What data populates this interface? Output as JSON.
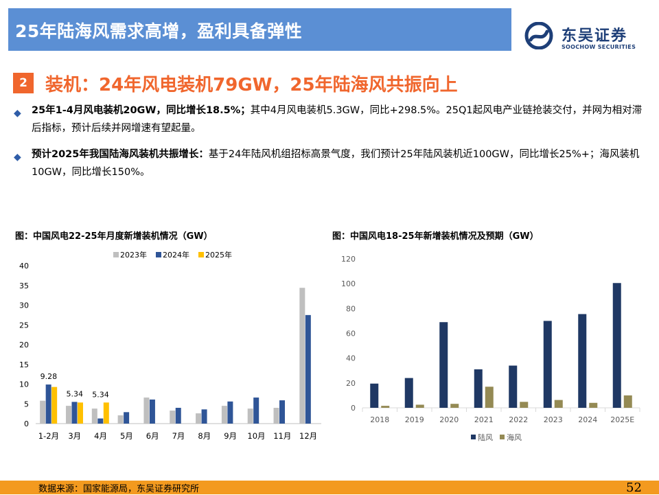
{
  "header": {
    "title": "25年陆海风需求高增，盈利具备弹性"
  },
  "logo": {
    "name_cn": "东吴证券",
    "name_en": "SOOCHOW SECURITIES"
  },
  "section": {
    "number": "2",
    "title": "装机：24年风电装机79GW，25年陆海风共振向上"
  },
  "bullets": [
    {
      "bold": "25年1-4月风电装机20GW，同比增长18.5%；",
      "text": "其中4月风电装机5.3GW，同比+298.5%。25Q1起风电产业链抢装交付，并网为相对滞后指标，预计后续并网增速有望起量。"
    },
    {
      "bold": "预计2025年我国陆海风装机共振增长：",
      "text": "基于24年陆风机组招标高景气度，我们预计25年陆风装机近100GW，同比增长25%+；海风装机10GW，同比增长150%。"
    }
  ],
  "colors": {
    "c2023": "#bfbfbf",
    "c2024": "#2f5597",
    "c2025": "#ffc000",
    "onshore": "#1f3864",
    "offshore": "#948a54",
    "accent": "#f0662d",
    "title_bar": "#5b8fd4"
  },
  "chart_data": [
    {
      "type": "bar",
      "title": "图：中国风电22-25年月度新增装机情况（GW）",
      "categories": [
        "1-2月",
        "3月",
        "4月",
        "5月",
        "6月",
        "7月",
        "8月",
        "9月",
        "10月",
        "11月",
        "12月"
      ],
      "series": [
        {
          "name": "2023年",
          "values": [
            5.8,
            4.5,
            3.8,
            2.1,
            6.6,
            3.3,
            2.6,
            4.5,
            3.8,
            4.0,
            34.4
          ]
        },
        {
          "name": "2024年",
          "values": [
            9.9,
            5.5,
            1.3,
            2.9,
            6.1,
            4.0,
            3.6,
            5.6,
            6.6,
            5.9,
            27.5
          ]
        },
        {
          "name": "2025年",
          "values": [
            9.28,
            5.34,
            5.34,
            null,
            null,
            null,
            null,
            null,
            null,
            null,
            null
          ]
        }
      ],
      "data_labels": [
        "9.28",
        "5.34",
        "5.34"
      ],
      "ylim": [
        0,
        40
      ],
      "yticks": [
        "0",
        "5",
        "10",
        "15",
        "20",
        "25",
        "30",
        "35",
        "40"
      ],
      "legend": "top"
    },
    {
      "type": "bar",
      "title": "图：中国风电18-25年新增装机情况及预期（GW）",
      "categories": [
        "2018",
        "2019",
        "2020",
        "2021",
        "2022",
        "2023",
        "2024",
        "2025E"
      ],
      "series": [
        {
          "name": "陆风",
          "values": [
            19.5,
            24,
            69,
            31,
            34,
            70,
            75.5,
            100.5
          ]
        },
        {
          "name": "海风",
          "values": [
            1.6,
            2.5,
            3.2,
            17,
            4.8,
            6.3,
            4.0,
            10
          ]
        }
      ],
      "ylim": [
        0,
        120
      ],
      "yticks": [
        "0",
        "20",
        "40",
        "60",
        "80",
        "100",
        "120"
      ],
      "legend": "bottom"
    }
  ],
  "footer": {
    "source": "数据来源：国家能源局，东吴证券研究所",
    "page": "52"
  }
}
